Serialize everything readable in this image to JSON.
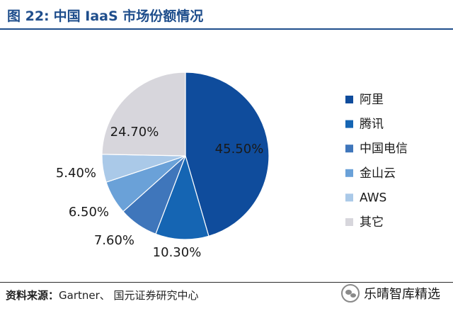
{
  "header": {
    "figure_number": "图 22:",
    "title": "中国 IaaS 市场份额情况"
  },
  "colors": {
    "title": "#1f4e8c",
    "slices": [
      "#0f4c9c",
      "#1565b3",
      "#3f76bb",
      "#6aa1d8",
      "#aac9e8",
      "#d7d6dc"
    ]
  },
  "chart_data": {
    "type": "pie",
    "title": "中国 IaaS 市场份额情况",
    "start": "12 o'clock, clockwise",
    "legend_position": "right",
    "categories": [
      "阿里",
      "腾讯",
      "中国电信",
      "金山云",
      "AWS",
      "其它"
    ],
    "values": [
      45.5,
      10.3,
      7.6,
      6.5,
      5.4,
      24.7
    ],
    "data_labels": [
      "45.50%",
      "10.30%",
      "7.60%",
      "6.50%",
      "5.40%",
      "24.70%"
    ]
  },
  "source": {
    "label": "资料来源：",
    "text": "Gartner、 国元证券研究中心"
  },
  "watermark": {
    "text": "乐晴智库精选",
    "icon": "wechat-icon"
  }
}
